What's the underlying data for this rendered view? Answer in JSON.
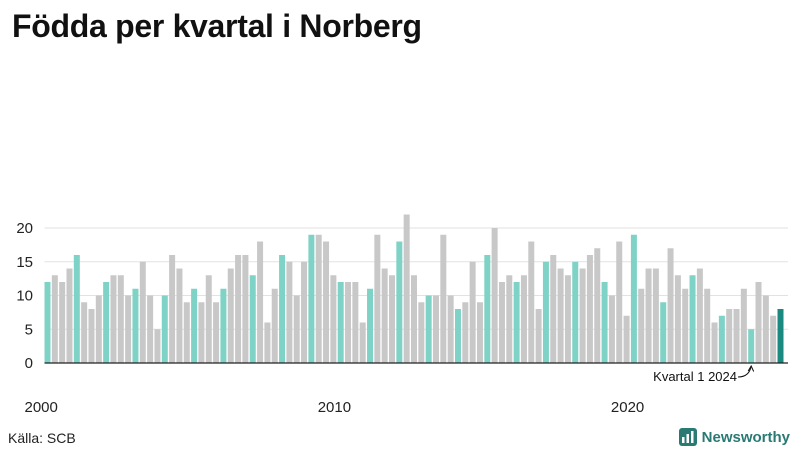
{
  "title": "Födda per kvartal i Norberg",
  "source": "Källa: SCB",
  "brand": "Newsworthy",
  "colors": {
    "q1": "#7fd3c6",
    "other": "#c8c8c8",
    "latest": "#1a8a80",
    "grid": "#e2e2e2",
    "axis": "#222222"
  },
  "chart_data": {
    "type": "bar",
    "title": "Födda per kvartal i Norberg",
    "xlabel": "",
    "ylabel": "",
    "ylim": [
      0,
      22
    ],
    "yticks": [
      0,
      5,
      10,
      15,
      20
    ],
    "xtick_labels": [
      {
        "label": "2000",
        "year": 2000
      },
      {
        "label": "2010",
        "year": 2010
      },
      {
        "label": "2020",
        "year": 2020
      }
    ],
    "start_year": 2000,
    "grid": true,
    "annotation": {
      "text": "Kvartal 1 2024",
      "target": "2024 Q1"
    },
    "values": [
      12,
      13,
      12,
      14,
      16,
      9,
      8,
      10,
      12,
      13,
      13,
      10,
      11,
      15,
      10,
      5,
      10,
      16,
      14,
      9,
      11,
      9,
      13,
      9,
      11,
      14,
      16,
      16,
      13,
      18,
      6,
      11,
      16,
      15,
      10,
      15,
      19,
      19,
      18,
      13,
      12,
      12,
      12,
      6,
      11,
      19,
      14,
      13,
      18,
      22,
      13,
      9,
      10,
      10,
      19,
      10,
      8,
      9,
      15,
      9,
      16,
      20,
      12,
      13,
      12,
      13,
      18,
      8,
      15,
      16,
      14,
      13,
      15,
      14,
      16,
      17,
      12,
      10,
      18,
      7,
      19,
      11,
      14,
      14,
      9,
      17,
      13,
      11,
      13,
      14,
      11,
      6,
      7,
      8,
      8,
      11,
      5,
      12,
      10,
      7,
      8
    ]
  }
}
